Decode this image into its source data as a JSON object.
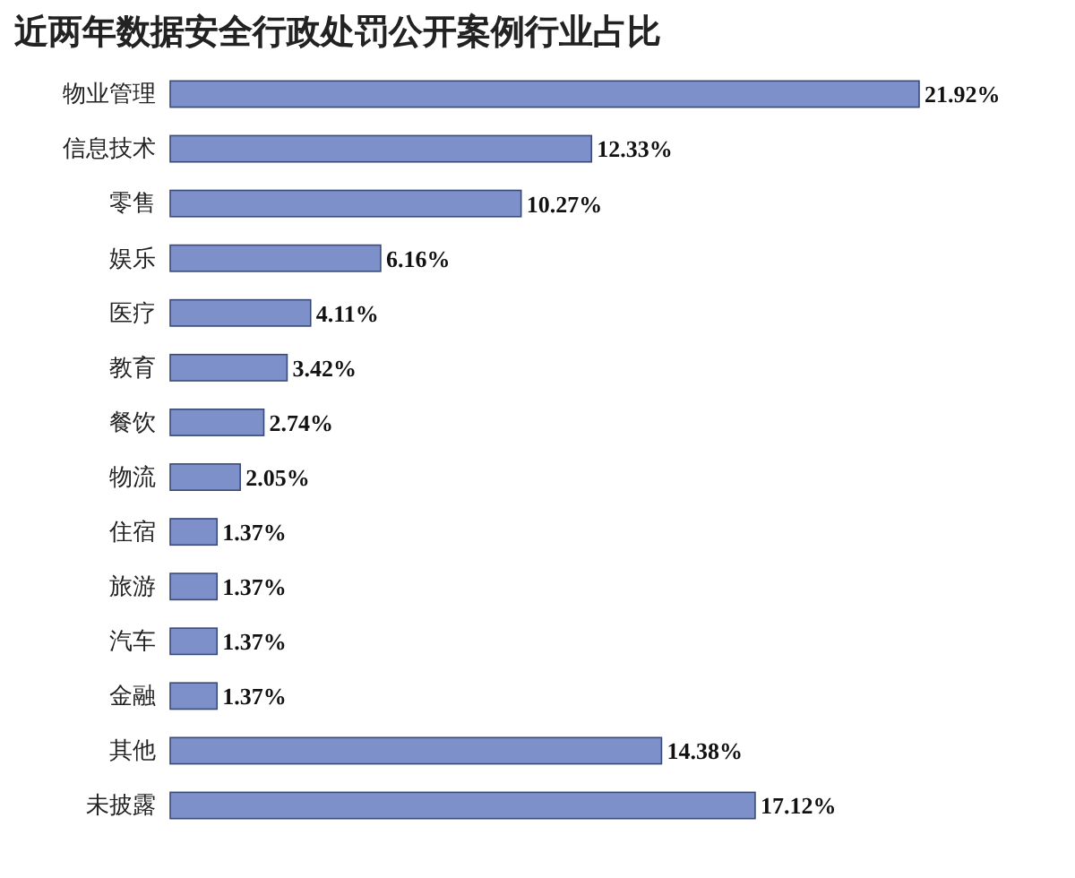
{
  "chart_data": {
    "type": "bar",
    "orientation": "horizontal",
    "title": "近两年数据安全行政处罚公开案例行业占比",
    "categories": [
      "物业管理",
      "信息技术",
      "零售",
      "娱乐",
      "医疗",
      "教育",
      "餐饮",
      "物流",
      "住宿",
      "旅游",
      "汽车",
      "金融",
      "其他",
      "未披露"
    ],
    "values": [
      21.92,
      12.33,
      10.27,
      6.16,
      4.11,
      3.42,
      2.74,
      2.05,
      1.37,
      1.37,
      1.37,
      1.37,
      14.38,
      17.12
    ],
    "value_labels": [
      "21.92%",
      "12.33%",
      "10.27%",
      "6.16%",
      "4.11%",
      "3.42%",
      "2.74%",
      "2.05%",
      "1.37%",
      "1.37%",
      "1.37%",
      "1.37%",
      "14.38%",
      "17.12%"
    ],
    "color": "#7d90c9"
  }
}
